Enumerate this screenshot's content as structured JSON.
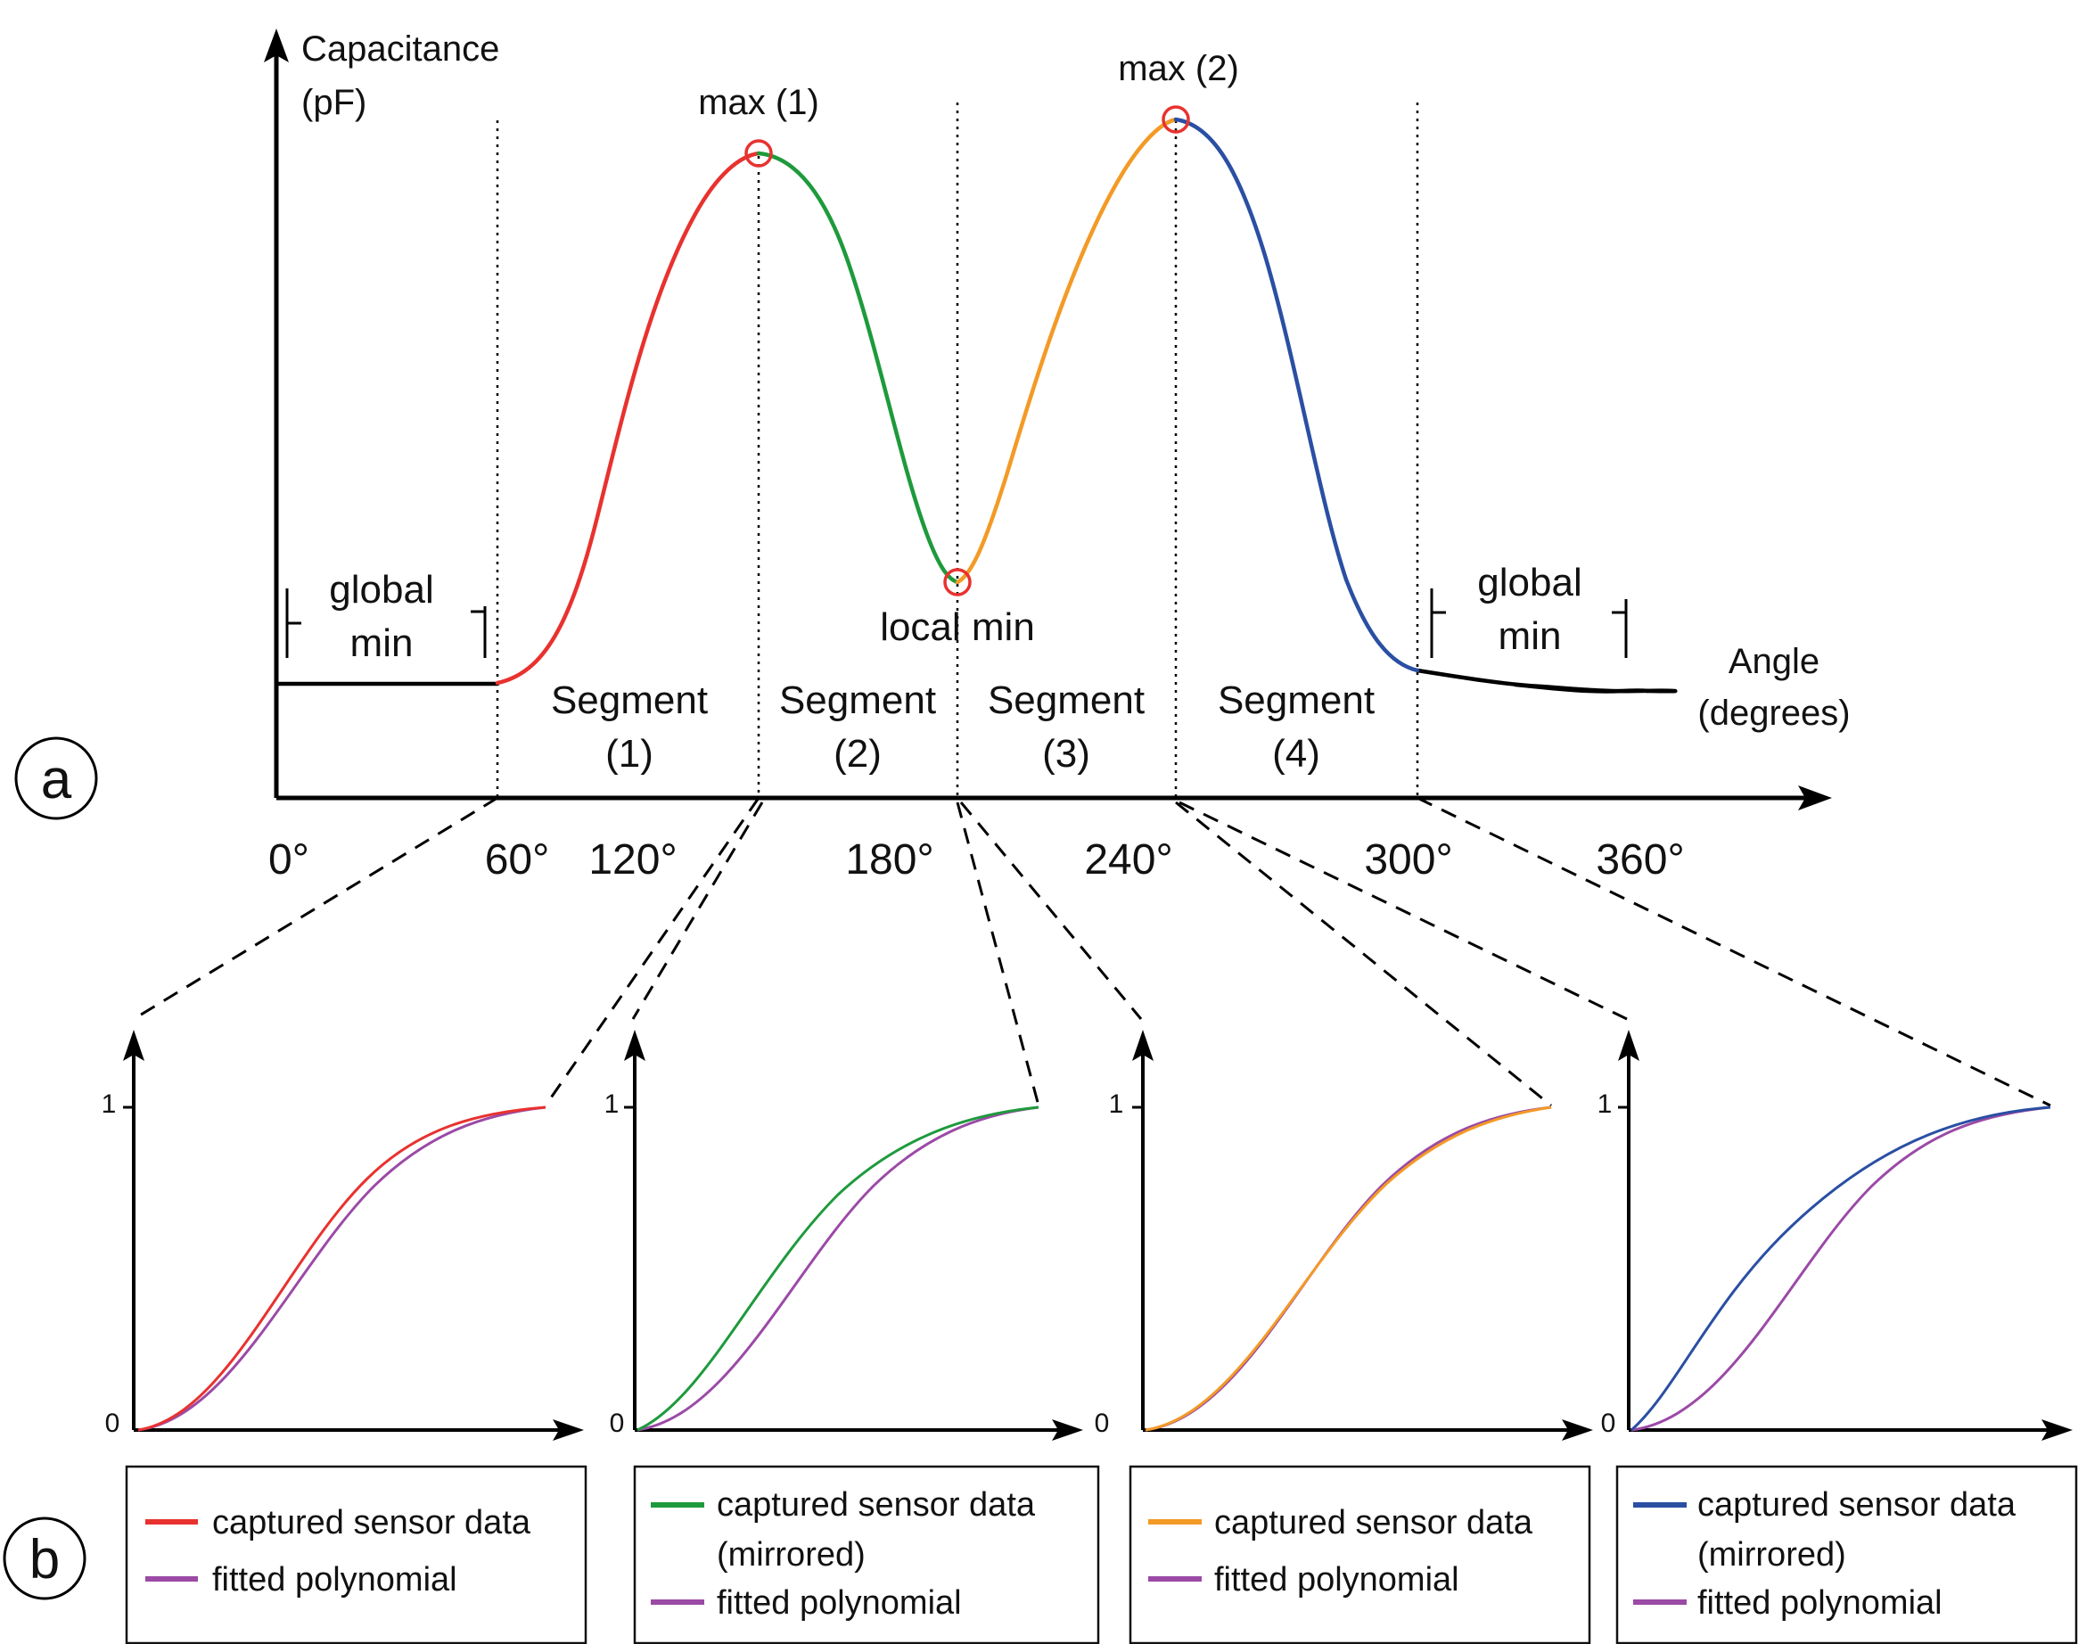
{
  "panel_a": {
    "label": "a",
    "y_axis_label": [
      "Capacitance",
      "(pF)"
    ],
    "x_axis_label": [
      "Angle",
      "(degrees)"
    ],
    "ticks": [
      "0°",
      "60°",
      "120°",
      "180°",
      "240°",
      "300°",
      "360°"
    ],
    "annotations": {
      "max1": "max (1)",
      "max2": "max (2)",
      "local_min": "local min",
      "global_min_left": [
        "global",
        "min"
      ],
      "global_min_right": [
        "global",
        "min"
      ]
    },
    "segments": [
      {
        "line1": "Segment",
        "line2": "(1)",
        "color": "#e8322f"
      },
      {
        "line1": "Segment",
        "line2": "(2)",
        "color": "#1e9a3c"
      },
      {
        "line1": "Segment",
        "line2": "(3)",
        "color": "#f39a26"
      },
      {
        "line1": "Segment",
        "line2": "(4)",
        "color": "#2a4fa3"
      }
    ],
    "baseline_color": "#000000",
    "marker_color": "#e8322f"
  },
  "panel_b": {
    "label": "b",
    "y_tick_top": "1",
    "y_tick_bottom": "0",
    "fit_color": "#9b4aa6",
    "legends": [
      {
        "data_label": [
          "captured sensor data"
        ],
        "fit_label": "fitted polynomial",
        "color": "#e8322f"
      },
      {
        "data_label": [
          "captured sensor data",
          "(mirrored)"
        ],
        "fit_label": "fitted polynomial",
        "color": "#1e9a3c"
      },
      {
        "data_label": [
          "captured sensor data"
        ],
        "fit_label": "fitted polynomial",
        "color": "#f39a26"
      },
      {
        "data_label": [
          "captured sensor data",
          "(mirrored)"
        ],
        "fit_label": "fitted polynomial",
        "color": "#2a4fa3"
      }
    ]
  }
}
